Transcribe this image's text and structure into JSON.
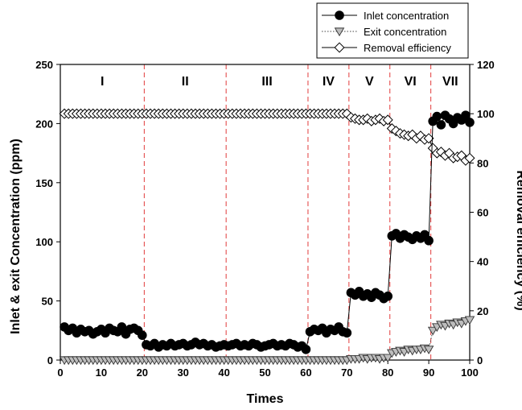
{
  "chart_data": {
    "type": "line",
    "xlabel": "Times",
    "ylabel_left": "Inlet & exit Concentration (ppm)",
    "ylabel_right": "Removal efficiency (%)",
    "xlim": [
      0,
      100
    ],
    "ylim_left": [
      0,
      250
    ],
    "ylim_right": [
      0,
      120
    ],
    "xticks": [
      0,
      10,
      20,
      30,
      40,
      50,
      60,
      70,
      80,
      90,
      100
    ],
    "yticks_left": [
      0,
      50,
      100,
      150,
      200,
      250
    ],
    "yticks_right": [
      0,
      20,
      40,
      60,
      80,
      100,
      120
    ],
    "grid": false,
    "legend_position": "top-right",
    "phases": [
      {
        "label": "I",
        "start": 0,
        "end": 20.5
      },
      {
        "label": "II",
        "start": 20.5,
        "end": 40.5
      },
      {
        "label": "III",
        "start": 40.5,
        "end": 60.5
      },
      {
        "label": "IV",
        "start": 60.5,
        "end": 70.5
      },
      {
        "label": "V",
        "start": 70.5,
        "end": 80.5
      },
      {
        "label": "VI",
        "start": 80.5,
        "end": 90.5
      },
      {
        "label": "VII",
        "start": 90.5,
        "end": 101
      }
    ],
    "series": [
      {
        "name": "Inlet concentration",
        "axis": "left",
        "marker": "circle-filled",
        "line": "solid",
        "color": "#000000",
        "x": [
          1,
          2,
          3,
          4,
          5,
          6,
          7,
          8,
          9,
          10,
          11,
          12,
          13,
          14,
          15,
          16,
          17,
          18,
          19,
          20,
          21,
          22,
          23,
          24,
          25,
          26,
          27,
          28,
          29,
          30,
          31,
          32,
          33,
          34,
          35,
          36,
          37,
          38,
          39,
          40,
          41,
          42,
          43,
          44,
          45,
          46,
          47,
          48,
          49,
          50,
          51,
          52,
          53,
          54,
          55,
          56,
          57,
          58,
          59,
          60,
          61,
          62,
          63,
          64,
          65,
          66,
          67,
          68,
          69,
          70,
          71,
          72,
          73,
          74,
          75,
          76,
          77,
          78,
          79,
          80,
          81,
          82,
          83,
          84,
          85,
          86,
          87,
          88,
          89,
          90,
          91,
          92,
          93,
          94,
          95,
          96,
          97,
          98,
          99,
          100
        ],
        "y": [
          28,
          25,
          27,
          23,
          26,
          24,
          25,
          22,
          24,
          26,
          23,
          27,
          25,
          24,
          28,
          22,
          26,
          27,
          25,
          21,
          13,
          12,
          14,
          11,
          13,
          12,
          14,
          12,
          13,
          14,
          12,
          13,
          15,
          13,
          14,
          12,
          13,
          11,
          12,
          13,
          12,
          13,
          14,
          12,
          13,
          12,
          14,
          13,
          11,
          12,
          13,
          14,
          12,
          13,
          12,
          14,
          13,
          11,
          12,
          9,
          24,
          26,
          25,
          27,
          23,
          26,
          25,
          28,
          24,
          23,
          57,
          55,
          58,
          54,
          56,
          53,
          57,
          55,
          52,
          54,
          105,
          107,
          103,
          106,
          104,
          102,
          105,
          103,
          106,
          101,
          202,
          206,
          199,
          207,
          204,
          200,
          205,
          203,
          207,
          201
        ]
      },
      {
        "name": "Exit concentration",
        "axis": "left",
        "marker": "triangle-down-open",
        "line": "dotted",
        "color": "#888888",
        "x": [
          1,
          2,
          3,
          4,
          5,
          6,
          7,
          8,
          9,
          10,
          11,
          12,
          13,
          14,
          15,
          16,
          17,
          18,
          19,
          20,
          21,
          22,
          23,
          24,
          25,
          26,
          27,
          28,
          29,
          30,
          31,
          32,
          33,
          34,
          35,
          36,
          37,
          38,
          39,
          40,
          41,
          42,
          43,
          44,
          45,
          46,
          47,
          48,
          49,
          50,
          51,
          52,
          53,
          54,
          55,
          56,
          57,
          58,
          59,
          60,
          61,
          62,
          63,
          64,
          65,
          66,
          67,
          68,
          69,
          70,
          71,
          72,
          73,
          74,
          75,
          76,
          77,
          78,
          79,
          80,
          81,
          82,
          83,
          84,
          85,
          86,
          87,
          88,
          89,
          90,
          91,
          92,
          93,
          94,
          95,
          96,
          97,
          98,
          99,
          100
        ],
        "y": [
          0,
          0,
          0,
          0,
          0,
          0,
          0,
          0,
          0,
          0,
          0,
          0,
          0,
          0,
          0,
          0,
          0,
          0,
          0,
          0,
          0,
          0,
          0,
          0,
          0,
          0,
          0,
          0,
          0,
          0,
          0,
          0,
          0,
          0,
          0,
          0,
          0,
          0,
          0,
          0,
          0,
          0,
          0,
          0,
          0,
          0,
          0,
          0,
          0,
          0,
          0,
          0,
          0,
          0,
          0,
          0,
          0,
          0,
          0,
          0,
          0,
          0,
          0,
          0,
          0,
          0,
          0,
          0,
          0,
          0,
          1,
          1,
          1,
          2,
          1,
          2,
          2,
          1,
          2,
          2,
          6,
          7,
          8,
          7,
          9,
          8,
          9,
          9,
          10,
          9,
          25,
          28,
          30,
          29,
          31,
          30,
          32,
          31,
          33,
          34
        ]
      },
      {
        "name": "Removal efficiency",
        "axis": "right",
        "marker": "diamond-open",
        "line": "solid",
        "color": "#000000",
        "x": [
          1,
          2,
          3,
          4,
          5,
          6,
          7,
          8,
          9,
          10,
          11,
          12,
          13,
          14,
          15,
          16,
          17,
          18,
          19,
          20,
          21,
          22,
          23,
          24,
          25,
          26,
          27,
          28,
          29,
          30,
          31,
          32,
          33,
          34,
          35,
          36,
          37,
          38,
          39,
          40,
          41,
          42,
          43,
          44,
          45,
          46,
          47,
          48,
          49,
          50,
          51,
          52,
          53,
          54,
          55,
          56,
          57,
          58,
          59,
          60,
          61,
          62,
          63,
          64,
          65,
          66,
          67,
          68,
          69,
          70,
          71,
          72,
          73,
          74,
          75,
          76,
          77,
          78,
          79,
          80,
          81,
          82,
          83,
          84,
          85,
          86,
          87,
          88,
          89,
          90,
          91,
          92,
          93,
          94,
          95,
          96,
          97,
          98,
          99,
          100
        ],
        "y": [
          100,
          100,
          100,
          100,
          100,
          100,
          100,
          100,
          100,
          100,
          100,
          100,
          100,
          100,
          100,
          100,
          100,
          100,
          100,
          100,
          100,
          100,
          100,
          100,
          100,
          100,
          100,
          100,
          100,
          100,
          100,
          100,
          100,
          100,
          100,
          100,
          100,
          100,
          100,
          100,
          100,
          100,
          100,
          100,
          100,
          100,
          100,
          100,
          100,
          100,
          100,
          100,
          100,
          100,
          100,
          100,
          100,
          100,
          100,
          100,
          100,
          100,
          100,
          100,
          100,
          100,
          100,
          100,
          100,
          100,
          98.5,
          98,
          97.5,
          97.5,
          98,
          97,
          97.5,
          98,
          97,
          97.5,
          94,
          93,
          92,
          91.5,
          91,
          91.5,
          90,
          91,
          89.5,
          90,
          86,
          84,
          84.5,
          83,
          84,
          82,
          82.5,
          83,
          81,
          82
        ]
      }
    ]
  }
}
